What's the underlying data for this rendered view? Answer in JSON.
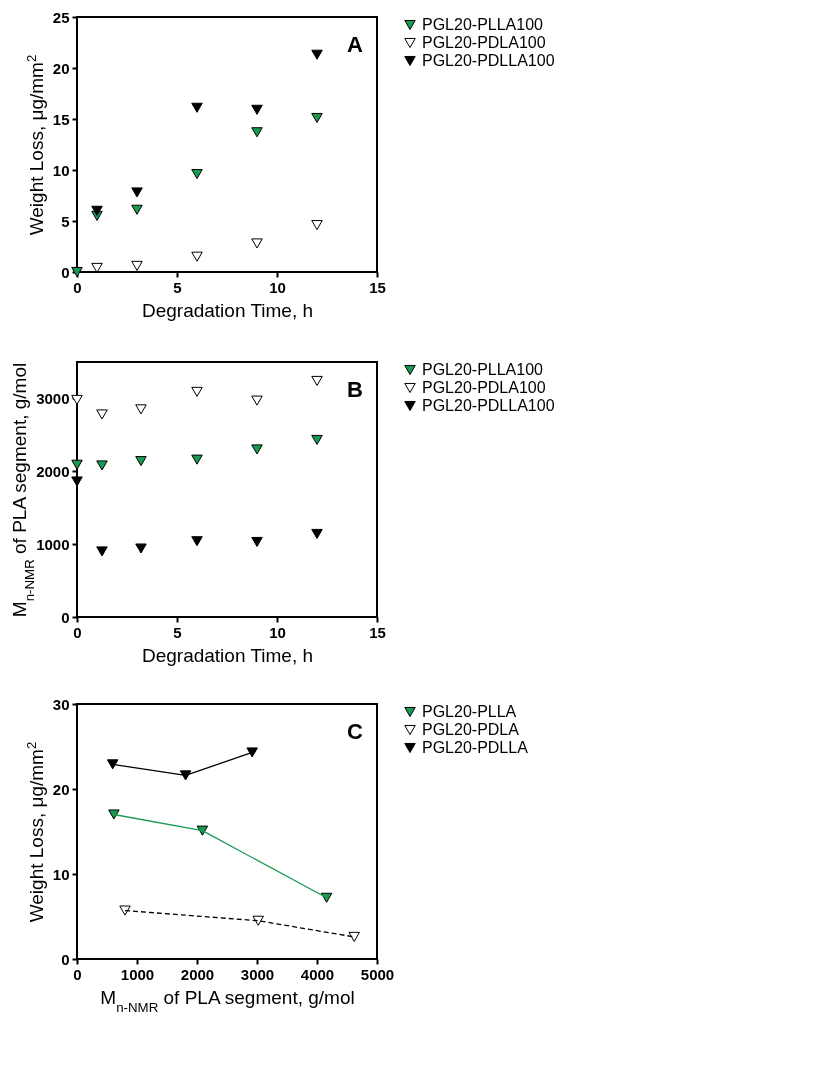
{
  "chart_data": [
    {
      "type": "scatter",
      "annotations": [
        "A"
      ],
      "xlabel": "Degradation Time, h",
      "ylabel": "Weight Loss, μg/mm$^{2}$",
      "xlim": [
        0,
        15
      ],
      "xticks": [
        0,
        5,
        10,
        15
      ],
      "ylim": [
        0,
        25
      ],
      "yticks": [
        0,
        5,
        10,
        15,
        20,
        25
      ],
      "marker": "triangle",
      "legend": "right",
      "grid": false,
      "series": [
        {
          "name": "PGL20-PLLA100",
          "color": "#1a9a50",
          "x": [
            0,
            1,
            3,
            6,
            9,
            12
          ],
          "values": [
            0,
            5.5,
            6.1,
            9.6,
            13.7,
            15.1
          ]
        },
        {
          "name": "PGL20-PDLA100",
          "color": "#ffffff",
          "x": [
            1,
            3,
            6,
            9,
            12
          ],
          "values": [
            0.4,
            0.6,
            1.5,
            2.8,
            4.6
          ]
        },
        {
          "name": "PGL20-PDLLA100",
          "color": "#000000",
          "x": [
            1,
            3,
            6,
            9,
            12
          ],
          "values": [
            6.0,
            7.8,
            16.1,
            15.9,
            21.3
          ]
        }
      ]
    },
    {
      "type": "scatter",
      "annotations": [
        "B"
      ],
      "xlabel": "Degradation Time, h",
      "ylabel": "M$_{n-NMR}$ of PLA segment, g/mol",
      "xlim": [
        0,
        15
      ],
      "xticks": [
        0,
        5,
        10,
        15
      ],
      "ylim": [
        0,
        3500
      ],
      "yticks": [
        0,
        1000,
        2000,
        3000
      ],
      "marker": "triangle",
      "legend": "right",
      "grid": false,
      "series": [
        {
          "name": "PGL20-PLLA100",
          "color": "#1a9a50",
          "x": [
            0,
            1.25,
            3.2,
            6,
            9,
            12
          ],
          "values": [
            2090,
            2080,
            2140,
            2160,
            2300,
            2430
          ]
        },
        {
          "name": "PGL20-PDLA100",
          "color": "#ffffff",
          "x": [
            0,
            1.25,
            3.2,
            6,
            9,
            12
          ],
          "values": [
            2980,
            2780,
            2850,
            3090,
            2970,
            3240
          ]
        },
        {
          "name": "PGL20-PDLLA100",
          "color": "#000000",
          "x": [
            0,
            1.25,
            3.2,
            6,
            9,
            12
          ],
          "values": [
            1860,
            900,
            940,
            1040,
            1030,
            1140
          ]
        }
      ]
    },
    {
      "type": "line",
      "annotations": [
        "C"
      ],
      "xlabel": "M$_{n-NMR}$ of PLA segment, g/mol",
      "ylabel": "Weight Loss, μg/mm$^{2}$",
      "xlim": [
        0,
        5000
      ],
      "xticks": [
        0,
        1000,
        2000,
        3000,
        4000,
        5000
      ],
      "ylim": [
        0,
        30
      ],
      "yticks": [
        0,
        10,
        20,
        30
      ],
      "marker": "triangle",
      "legend": "right",
      "grid": false,
      "series": [
        {
          "name": "PGL20-PLLA",
          "color": "#1a9a50",
          "line_style": "solid",
          "x": [
            615,
            2090,
            4160
          ],
          "values": [
            17.0,
            15.1,
            7.2
          ]
        },
        {
          "name": "PGL20-PDLA",
          "color": "#ffffff",
          "line_style": "dashed",
          "x": [
            800,
            3020,
            4620
          ],
          "values": [
            5.7,
            4.5,
            2.6
          ]
        },
        {
          "name": "PGL20-PDLLA",
          "color": "#000000",
          "line_style": "solid",
          "x": [
            595,
            1810,
            2920
          ],
          "values": [
            22.9,
            21.6,
            24.3
          ]
        }
      ]
    }
  ]
}
